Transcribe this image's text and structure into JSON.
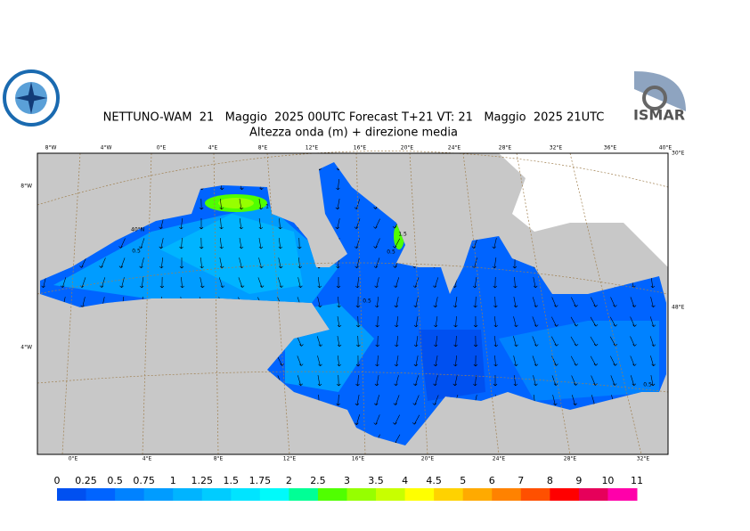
{
  "header": {
    "title": "NETTUNO-WAM  21   Maggio  2025 00UTC Forecast T+21 VT: 21   Maggio  2025 21UTC",
    "subtitle": "Altezza onda (m) + direzione media",
    "logo_right": "ISMAR"
  },
  "map": {
    "top_labels": [
      "8°W",
      "4°W",
      "0°E",
      "4°E",
      "8°E",
      "12°E",
      "16°E",
      "20°E",
      "24°E",
      "28°E",
      "32°E",
      "36°E",
      "40°E"
    ],
    "bottom_labels": [
      "0°E",
      "4°E",
      "8°E",
      "12°E",
      "16°E",
      "20°E",
      "24°E",
      "28°E",
      "32°E"
    ],
    "left_labels": [
      "8°W",
      "4°W"
    ],
    "right_labels": [
      "30°E",
      "48°E"
    ],
    "inner_labels": [
      "40°N"
    ],
    "contour_labels": [
      "0.5",
      "1",
      "1.5",
      "0.5",
      "0.5",
      "0.5"
    ]
  },
  "colorbar": {
    "labels": [
      0,
      0.25,
      0.5,
      0.75,
      1,
      1.25,
      1.5,
      1.75,
      2,
      2.5,
      3,
      3.5,
      4,
      4.5,
      5,
      6,
      7,
      8,
      9,
      10,
      11
    ],
    "colors": [
      "#0050f0",
      "#0064ff",
      "#0082ff",
      "#009cff",
      "#00b4ff",
      "#00ccff",
      "#00e4ff",
      "#00fafa",
      "#00ff96",
      "#50ff00",
      "#96ff00",
      "#c8ff00",
      "#ffff00",
      "#ffd200",
      "#ffaa00",
      "#ff8200",
      "#ff5000",
      "#ff0000",
      "#e6005a",
      "#ff00aa"
    ]
  }
}
